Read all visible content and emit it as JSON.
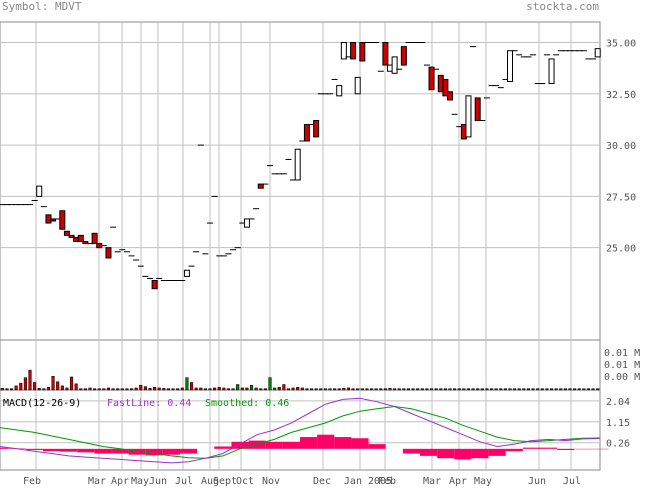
{
  "header": {
    "symbol_label": "Symbol: MDVT",
    "site": "stockta.com"
  },
  "colors": {
    "up_candle": "#ffffff",
    "down_candle": "#cc0000",
    "candle_edge": "#000000",
    "volume_up": "#008000",
    "volume_down": "#cc0000",
    "fast_line": "#9933cc",
    "smoothed_line": "#009900",
    "histogram": "#ff0066",
    "grid": "#c0c0c0",
    "label": "#555555"
  },
  "chart_data": [
    {
      "type": "candlestick",
      "panel": "price",
      "x_ticks": [
        "Feb",
        "Mar",
        "Apr",
        "May",
        "Jun",
        "Jul",
        "Aug",
        "Sept",
        "Oct",
        "Nov",
        "Dec",
        "Jan 2005",
        "Feb",
        "Mar",
        "Apr",
        "May",
        "Jun",
        "Jul"
      ],
      "y_ticks": [
        "35.00",
        "32.50",
        "30.00",
        "27.50",
        "25.00"
      ],
      "y_tick_values": [
        35,
        32.5,
        30,
        27.5,
        25
      ],
      "ylim": [
        20.5,
        36
      ],
      "candles": [
        {
          "o": 27.1,
          "c": 27.1
        },
        {
          "o": 27.1,
          "c": 27.1
        },
        {
          "o": 27.1,
          "c": 27.1
        },
        {
          "o": 27.1,
          "c": 27.1
        },
        {
          "o": 27.1,
          "c": 27.1
        },
        {
          "o": 27.1,
          "c": 27.1
        },
        {
          "o": 27.1,
          "c": 27.1
        },
        {
          "o": 27.3,
          "c": 27.3
        },
        {
          "o": 27.5,
          "c": 28.0
        },
        {
          "o": 27.0,
          "c": 27.0
        },
        {
          "o": 26.6,
          "c": 26.2
        },
        {
          "o": 26.4,
          "c": 26.3
        },
        {
          "o": 26.4,
          "c": 26.4
        },
        {
          "o": 26.8,
          "c": 25.9
        },
        {
          "o": 25.8,
          "c": 25.6
        },
        {
          "o": 25.6,
          "c": 25.5
        },
        {
          "o": 25.5,
          "c": 25.3
        },
        {
          "o": 25.6,
          "c": 25.3
        },
        {
          "o": 25.3,
          "c": 25.2
        },
        {
          "o": 25.2,
          "c": 25.2
        },
        {
          "o": 25.7,
          "c": 25.2
        },
        {
          "o": 25.2,
          "c": 25.0
        },
        {
          "o": 25.1,
          "c": 25.1
        },
        {
          "o": 25.0,
          "c": 24.5
        },
        {
          "o": 26.0,
          "c": 26.0
        },
        {
          "o": 24.8,
          "c": 24.8
        },
        {
          "o": 24.9,
          "c": 24.9
        },
        {
          "o": 24.8,
          "c": 24.8
        },
        {
          "o": 24.6,
          "c": 24.6
        },
        {
          "o": 24.4,
          "c": 24.4
        },
        {
          "o": 24.1,
          "c": 24.1
        },
        {
          "o": 23.6,
          "c": 23.6
        },
        {
          "o": 23.5,
          "c": 23.5
        },
        {
          "o": 23.4,
          "c": 23.0
        },
        {
          "o": 23.5,
          "c": 23.5
        },
        {
          "o": 23.4,
          "c": 23.4
        },
        {
          "o": 23.4,
          "c": 23.4
        },
        {
          "o": 23.4,
          "c": 23.4
        },
        {
          "o": 23.4,
          "c": 23.4
        },
        {
          "o": 23.4,
          "c": 23.4
        },
        {
          "o": 23.6,
          "c": 23.9
        },
        {
          "o": 24.1,
          "c": 24.1
        },
        {
          "o": 24.8,
          "c": 24.8
        },
        {
          "o": 30.0,
          "c": 30.0
        },
        {
          "o": 24.7,
          "c": 24.7
        },
        {
          "o": 26.2,
          "c": 26.2
        },
        {
          "o": 27.5,
          "c": 27.5
        },
        {
          "o": 24.6,
          "c": 24.6
        },
        {
          "o": 24.6,
          "c": 24.6
        },
        {
          "o": 24.7,
          "c": 24.7
        },
        {
          "o": 24.9,
          "c": 24.9
        },
        {
          "o": 25.0,
          "c": 25.0
        },
        {
          "o": 26.2,
          "c": 26.2
        },
        {
          "o": 26.0,
          "c": 26.4
        },
        {
          "o": 26.4,
          "c": 26.4
        },
        {
          "o": 26.9,
          "c": 26.9
        },
        {
          "o": 28.1,
          "c": 27.9
        },
        {
          "o": 28.1,
          "c": 28.1
        },
        {
          "o": 29.0,
          "c": 29.0
        },
        {
          "o": 28.6,
          "c": 28.6
        },
        {
          "o": 28.6,
          "c": 28.6
        },
        {
          "o": 28.6,
          "c": 28.6
        },
        {
          "o": 29.3,
          "c": 29.3
        },
        {
          "o": 28.3,
          "c": 28.3
        },
        {
          "o": 28.3,
          "c": 29.8
        },
        {
          "o": 30.2,
          "c": 30.2
        },
        {
          "o": 31.0,
          "c": 30.2
        },
        {
          "o": 31.0,
          "c": 31.0
        },
        {
          "o": 31.2,
          "c": 30.4
        },
        {
          "o": 32.5,
          "c": 32.5
        },
        {
          "o": 32.5,
          "c": 32.5
        },
        {
          "o": 32.5,
          "c": 32.5
        },
        {
          "o": 33.2,
          "c": 33.2
        },
        {
          "o": 32.4,
          "c": 32.9
        },
        {
          "o": 34.2,
          "c": 35.0
        },
        {
          "o": 34.3,
          "c": 34.3
        },
        {
          "o": 35.0,
          "c": 34.2
        },
        {
          "o": 32.5,
          "c": 33.3
        },
        {
          "o": 35.0,
          "c": 34.1
        },
        {
          "o": 35.0,
          "c": 35.0
        },
        {
          "o": 35.0,
          "c": 35.0
        },
        {
          "o": 35.0,
          "c": 35.0
        },
        {
          "o": 33.6,
          "c": 33.6
        },
        {
          "o": 35.0,
          "c": 33.9
        },
        {
          "o": 33.6,
          "c": 33.9
        },
        {
          "o": 33.5,
          "c": 34.3
        },
        {
          "o": 33.7,
          "c": 33.7
        },
        {
          "o": 34.8,
          "c": 33.9
        },
        {
          "o": 35.0,
          "c": 35.0
        },
        {
          "o": 35.0,
          "c": 35.0
        },
        {
          "o": 35.0,
          "c": 35.0
        },
        {
          "o": 35.0,
          "c": 35.0
        },
        {
          "o": 33.9,
          "c": 33.9
        },
        {
          "o": 33.8,
          "c": 32.7
        },
        {
          "o": 33.7,
          "c": 33.7
        },
        {
          "o": 33.4,
          "c": 32.6
        },
        {
          "o": 33.2,
          "c": 32.4
        },
        {
          "o": 32.6,
          "c": 32.2
        },
        {
          "o": 31.5,
          "c": 31.5
        },
        {
          "o": 30.9,
          "c": 30.9
        },
        {
          "o": 31.0,
          "c": 30.3
        },
        {
          "o": 30.4,
          "c": 32.4
        },
        {
          "o": 34.8,
          "c": 34.8
        },
        {
          "o": 32.3,
          "c": 31.2
        },
        {
          "o": 31.2,
          "c": 31.2
        },
        {
          "o": 32.3,
          "c": 32.3
        },
        {
          "o": 32.9,
          "c": 32.9
        },
        {
          "o": 32.9,
          "c": 32.9
        },
        {
          "o": 32.8,
          "c": 32.8
        },
        {
          "o": 33.2,
          "c": 33.2
        },
        {
          "o": 33.1,
          "c": 34.6
        },
        {
          "o": 34.6,
          "c": 34.6
        },
        {
          "o": 34.4,
          "c": 34.4
        },
        {
          "o": 34.3,
          "c": 34.3
        },
        {
          "o": 34.3,
          "c": 34.3
        },
        {
          "o": 34.4,
          "c": 34.4
        },
        {
          "o": 33.0,
          "c": 33.0
        },
        {
          "o": 33.0,
          "c": 33.0
        },
        {
          "o": 34.4,
          "c": 34.4
        },
        {
          "o": 33.0,
          "c": 34.2
        },
        {
          "o": 34.4,
          "c": 34.4
        },
        {
          "o": 34.6,
          "c": 34.6
        },
        {
          "o": 34.6,
          "c": 34.6
        },
        {
          "o": 34.6,
          "c": 34.6
        },
        {
          "o": 34.6,
          "c": 34.6
        },
        {
          "o": 34.6,
          "c": 34.6
        },
        {
          "o": 34.6,
          "c": 34.6
        },
        {
          "o": 34.2,
          "c": 34.2
        },
        {
          "o": 34.2,
          "c": 34.2
        },
        {
          "o": 34.3,
          "c": 34.7
        }
      ]
    },
    {
      "type": "bar",
      "panel": "volume",
      "y_ticks": [
        "0.01 M",
        "0.01 M",
        "0.00 M"
      ],
      "ylim": [
        0,
        0.014
      ],
      "values": [
        0.0005,
        0.0004,
        0.0004,
        0.0012,
        0.002,
        0.0036,
        0.0058,
        0.0022,
        0.0005,
        0.0004,
        0.0008,
        0.004,
        0.0024,
        0.0012,
        0.0006,
        0.0038,
        0.0018,
        0.0004,
        0.0004,
        0.0006,
        0.0004,
        0.0004,
        0.0004,
        0.0006,
        0.0004,
        0.0004,
        0.0004,
        0.0004,
        0.0004,
        0.0006,
        0.0014,
        0.001,
        0.0005,
        0.0008,
        0.0006,
        0.0005,
        0.0004,
        0.0004,
        0.0004,
        0.0006,
        0.0036,
        0.0022,
        0.0006,
        0.0006,
        0.0004,
        0.0004,
        0.0006,
        0.0008,
        0.0006,
        0.0004,
        0.0004,
        0.0016,
        0.0006,
        0.0006,
        0.0014,
        0.0006,
        0.0004,
        0.0004,
        0.0036,
        0.0006,
        0.0008,
        0.0016,
        0.0004,
        0.0006,
        0.0008,
        0.0006,
        0.0004,
        0.0004,
        0.0004,
        0.0004,
        0.0004,
        0.0004,
        0.0004,
        0.0004,
        0.0005,
        0.0006,
        0.0004,
        0.0004,
        0.0004,
        0.0004,
        0.0004,
        0.0004,
        0.0004,
        0.0004,
        0.0005,
        0.0004,
        0.0004,
        0.0004,
        0.0004,
        0.0004,
        0.0004,
        0.0004,
        0.0004,
        0.0004,
        0.0004,
        0.0004,
        0.0004,
        0.0004,
        0.0004,
        0.0004,
        0.0004,
        0.0004,
        0.0004,
        0.0004,
        0.0004,
        0.0004,
        0.0004,
        0.0004,
        0.0004,
        0.0004,
        0.0004,
        0.0004,
        0.0004,
        0.0004,
        0.0004,
        0.0004,
        0.0004,
        0.0004,
        0.0004,
        0.0004,
        0.0004,
        0.0004,
        0.0004,
        0.0004,
        0.0004,
        0.0004,
        0.0004,
        0.0004,
        0.0004,
        0.0004
      ],
      "directions": [
        "d",
        "d",
        "d",
        "d",
        "d",
        "d",
        "d",
        "d",
        "d",
        "d",
        "d",
        "d",
        "d",
        "d",
        "d",
        "d",
        "d",
        "d",
        "d",
        "d",
        "d",
        "d",
        "d",
        "d",
        "d",
        "d",
        "d",
        "d",
        "d",
        "d",
        "d",
        "d",
        "d",
        "d",
        "d",
        "d",
        "d",
        "d",
        "d",
        "d",
        "u",
        "d",
        "d",
        "d",
        "d",
        "d",
        "d",
        "d",
        "d",
        "d",
        "d",
        "u",
        "d",
        "d",
        "u",
        "d",
        "d",
        "d",
        "u",
        "u",
        "d",
        "d",
        "d",
        "d",
        "d",
        "d",
        "d",
        "d",
        "d",
        "d",
        "d",
        "d",
        "d",
        "d",
        "d",
        "d",
        "d",
        "d",
        "d",
        "d",
        "d",
        "d",
        "d",
        "d",
        "d",
        "d",
        "d",
        "d",
        "d",
        "d",
        "d",
        "d",
        "d",
        "d",
        "d",
        "d",
        "d",
        "d",
        "d",
        "d",
        "d",
        "d",
        "d",
        "d",
        "d",
        "d",
        "d",
        "d",
        "d",
        "d",
        "d",
        "d",
        "d",
        "d",
        "d",
        "d",
        "d",
        "d",
        "d",
        "d",
        "d",
        "d",
        "d",
        "d",
        "d",
        "d",
        "d",
        "d",
        "d",
        "d"
      ]
    },
    {
      "type": "line",
      "panel": "macd",
      "title": "MACD(12-26-9)",
      "legend": [
        {
          "label": "FastLine: 0.44",
          "color": "#9933cc"
        },
        {
          "label": "Smoothed: 0.46",
          "color": "#009900"
        }
      ],
      "y_ticks": [
        "2.04",
        "1.15",
        "0.26"
      ],
      "y_tick_values": [
        2.04,
        1.15,
        0.26
      ],
      "ylim": [
        -0.9,
        2.5
      ],
      "fast_line": [
        0.1,
        0.0,
        -0.1,
        -0.2,
        -0.3,
        -0.35,
        -0.4,
        -0.45,
        -0.5,
        -0.55,
        -0.6,
        -0.55,
        -0.4,
        -0.2,
        0.2,
        0.6,
        0.8,
        1.1,
        1.5,
        1.9,
        2.1,
        2.15,
        2.0,
        1.8,
        1.5,
        1.2,
        0.9,
        0.6,
        0.3,
        0.1,
        0.2,
        0.35,
        0.4,
        0.35,
        0.42,
        0.44
      ],
      "smoothed_line": [
        0.9,
        0.8,
        0.7,
        0.55,
        0.4,
        0.25,
        0.1,
        0.0,
        -0.1,
        -0.2,
        -0.3,
        -0.38,
        -0.4,
        -0.3,
        0.0,
        0.2,
        0.4,
        0.7,
        0.9,
        1.1,
        1.4,
        1.6,
        1.7,
        1.8,
        1.7,
        1.5,
        1.3,
        1.0,
        0.75,
        0.5,
        0.35,
        0.3,
        0.35,
        0.4,
        0.45,
        0.46
      ],
      "histogram": [
        0.05,
        0.02,
        -0.05,
        -0.1,
        -0.12,
        -0.15,
        -0.2,
        -0.2,
        -0.25,
        -0.28,
        -0.25,
        -0.2,
        0.0,
        0.1,
        0.3,
        0.35,
        0.3,
        0.3,
        0.5,
        0.6,
        0.5,
        0.45,
        0.2,
        0.0,
        -0.2,
        -0.3,
        -0.4,
        -0.45,
        -0.4,
        -0.3,
        -0.1,
        0.05,
        0.05,
        -0.05,
        -0.02,
        -0.02
      ]
    }
  ]
}
